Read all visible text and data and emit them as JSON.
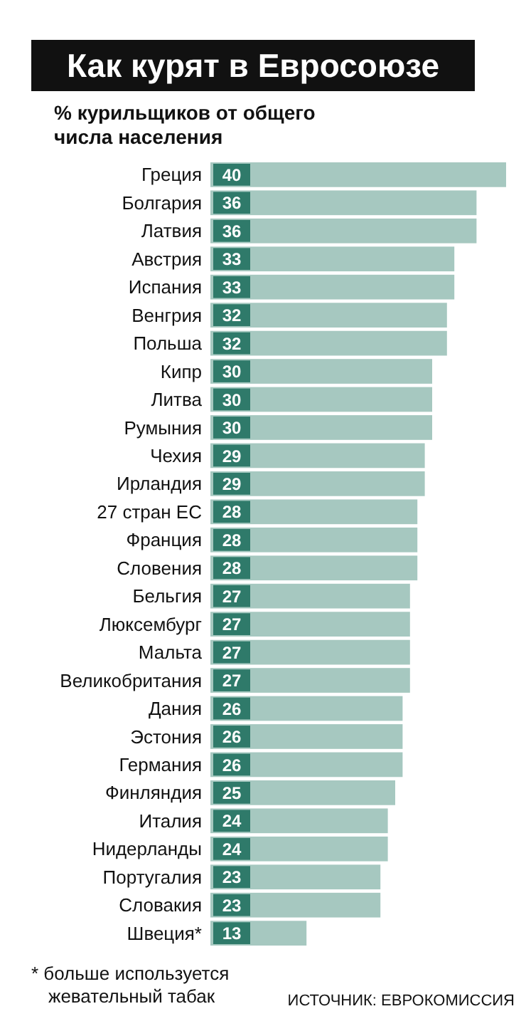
{
  "chart_data": {
    "type": "bar",
    "orientation": "horizontal",
    "title": "Как курят в Евросоюзе",
    "subtitle": "% курильщиков от общего числа населения",
    "categories": [
      "Греция",
      "Болгария",
      "Латвия",
      "Австрия",
      "Испания",
      "Венгрия",
      "Польша",
      "Кипр",
      "Литва",
      "Румыния",
      "Чехия",
      "Ирландия",
      "27 стран ЕС",
      "Франция",
      "Словения",
      "Бельгия",
      "Люксембург",
      "Мальта",
      "Великобритания",
      "Дания",
      "Эстония",
      "Германия",
      "Финляндия",
      "Италия",
      "Нидерланды",
      "Португалия",
      "Словакия",
      "Швеция*"
    ],
    "values": [
      40,
      36,
      36,
      33,
      33,
      32,
      32,
      30,
      30,
      30,
      29,
      29,
      28,
      28,
      28,
      27,
      27,
      27,
      27,
      26,
      26,
      26,
      25,
      24,
      24,
      23,
      23,
      13
    ],
    "color": "#a6c8c0",
    "data_labels": true,
    "annotations": [
      "* больше используется жевательный табак",
      "ИСТОЧНИК: ЕВРОКОМИССИЯ"
    ]
  }
}
